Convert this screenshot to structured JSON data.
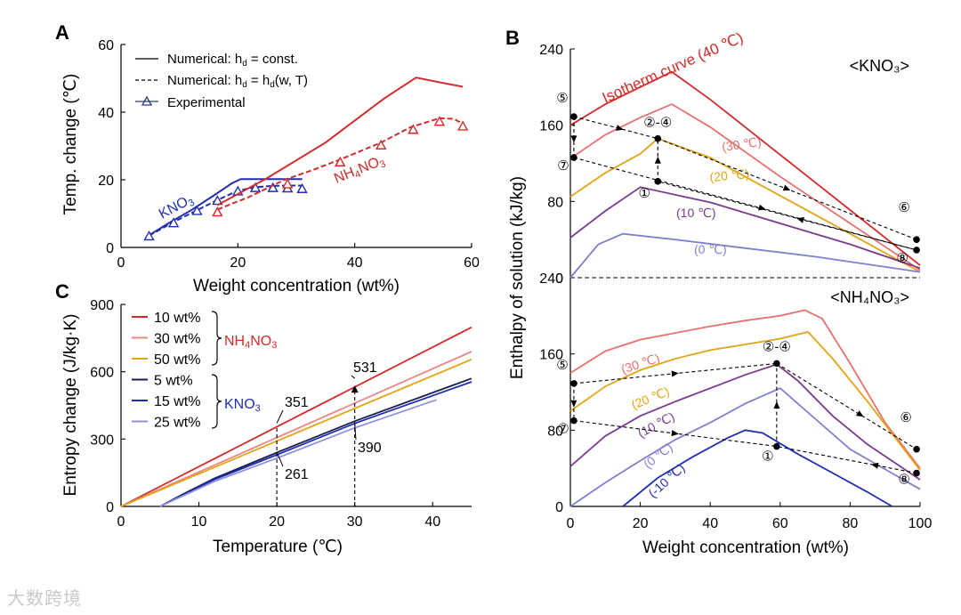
{
  "watermark": "大数跨境",
  "chart_data": [
    {
      "panel": "A",
      "type": "line",
      "xlabel": "Weight concentration (wt%)",
      "ylabel": "Temp. change (℃)",
      "xlim": [
        0,
        60
      ],
      "ylim": [
        0,
        60
      ],
      "xticks": [
        0,
        20,
        40,
        60
      ],
      "yticks": [
        0,
        20,
        40,
        60
      ],
      "legend": [
        "Numerical: h_d = const.",
        "Numerical: h_d = h_d(w, T)",
        "Experimental"
      ],
      "legend_placement": "top-left",
      "colors": {
        "KNO3": "#1f2fb0",
        "NH4NO3": "#d42a2a"
      },
      "series": [
        {
          "name": "KNO3 numerical const",
          "style": "solid",
          "color": "#1f2fb0",
          "x": [
            4.8,
            8,
            12,
            16,
            19,
            20.5,
            22,
            31
          ],
          "y": [
            3.6,
            7,
            11,
            15.5,
            19,
            20.2,
            20.2,
            20.2
          ]
        },
        {
          "name": "KNO3 numerical hd(w,T)",
          "style": "dashed",
          "color": "#1f2fb0",
          "x": [
            4.8,
            9,
            13,
            16.5,
            20,
            23,
            26,
            29,
            31
          ],
          "y": [
            3.5,
            7.5,
            11,
            14,
            16.8,
            17.8,
            18.2,
            18.3,
            18.3
          ]
        },
        {
          "name": "KNO3 experimental",
          "style": "markers",
          "color": "#1f2fb0",
          "x": [
            4.8,
            9,
            13,
            16.5,
            20,
            23,
            26,
            28.5,
            31
          ],
          "y": [
            3.3,
            7.2,
            10.8,
            13.8,
            16.6,
            17.6,
            17.6,
            17.5,
            17.3
          ]
        },
        {
          "name": "NH4NO3 numerical const",
          "style": "solid",
          "color": "#d42a2a",
          "x": [
            16.5,
            25,
            35,
            45,
            50.5,
            54,
            58.5
          ],
          "y": [
            12.5,
            20.5,
            31,
            44,
            50.2,
            49,
            47.5
          ]
        },
        {
          "name": "NH4NO3 numerical hd(w,T)",
          "style": "dashed",
          "color": "#d42a2a",
          "x": [
            16.5,
            22,
            28,
            33,
            37.5,
            44.5,
            49.5,
            54.5,
            57,
            58.5
          ],
          "y": [
            11.2,
            15,
            20,
            23,
            26,
            31,
            35.5,
            38.2,
            38,
            36.5
          ]
        },
        {
          "name": "NH4NO3 experimental",
          "style": "markers",
          "color": "#d42a2a",
          "x": [
            16.5,
            28.5,
            37.5,
            44.5,
            50,
            54.5,
            58.5
          ],
          "y": [
            10.4,
            18.7,
            25.2,
            30.2,
            34.8,
            37.2,
            35.8
          ]
        }
      ],
      "annotations": [
        {
          "text": "KNO",
          "sub": "3",
          "color": "#1f2fb0"
        },
        {
          "text": "NH",
          "sub": "4",
          "text2": "NO",
          "sub2": "3",
          "color": "#d42a2a"
        }
      ]
    },
    {
      "panel": "B",
      "type": "line",
      "xlabel": "Weight concentration (wt%)",
      "ylabel": "Enthalpy of solution (kJ/kg)",
      "xlim": [
        0,
        100
      ],
      "xticks": [
        0,
        20,
        40,
        60,
        80,
        100
      ],
      "subplots": [
        {
          "title": "<KNO₃>",
          "ylim": [
            0,
            240
          ],
          "yticks": [
            0,
            80,
            160,
            240
          ],
          "isotherms": [
            {
              "label": "Isotherm curve (40 ℃)",
              "color": "#d42a2a",
              "x": [
                0,
                10,
                20,
                29,
                40,
                60,
                80,
                100
              ],
              "y": [
                160,
                182,
                200,
                216,
                187,
                129,
                71,
                13
              ]
            },
            {
              "label": "(30 ℃)",
              "color": "#e8716e",
              "x": [
                0,
                10,
                20,
                29,
                40,
                60,
                80,
                100
              ],
              "y": [
                125,
                150,
                168,
                182,
                158,
                106,
                57,
                8
              ]
            },
            {
              "label": "(20 ℃)",
              "color": "#e3a418",
              "x": [
                0,
                10,
                20,
                25,
                40,
                60,
                80,
                100
              ],
              "y": [
                85,
                110,
                130,
                146,
                126,
                86,
                46,
                6
              ]
            },
            {
              "label": "(10 ℃)",
              "color": "#7a3a90",
              "x": [
                0,
                10,
                20,
                40,
                60,
                80,
                100
              ],
              "y": [
                42,
                70,
                95,
                79,
                57,
                35,
                10
              ]
            },
            {
              "label": "(0 ℃)",
              "color": "#7f7fd0",
              "x": [
                0,
                8,
                15,
                30,
                50,
                70,
                100
              ],
              "y": [
                0,
                35,
                46,
                40,
                31,
                22,
                6
              ]
            }
          ],
          "cycle_points": [
            {
              "label": "⑤",
              "x": 1,
              "y": 169
            },
            {
              "label": "②-④",
              "x": 25,
              "y": 146
            },
            {
              "label": "①",
              "x": 25,
              "y": 101
            },
            {
              "label": "⑦",
              "x": 1,
              "y": 126
            },
            {
              "label": "⑥",
              "x": 99,
              "y": 40
            },
            {
              "label": "⑧",
              "x": 99,
              "y": 29
            }
          ]
        },
        {
          "title": "<NH₄NO₃>",
          "ylim": [
            0,
            240
          ],
          "yticks": [
            0,
            80,
            160,
            240
          ],
          "isotherms": [
            {
              "label": "(30 ℃)",
              "color": "#e8716e",
              "x": [
                0,
                10,
                20,
                30,
                40,
                50,
                60,
                67,
                72,
                80,
                90,
                100
              ],
              "y": [
                140,
                163,
                175,
                182,
                189,
                195,
                200,
                206,
                197,
                150,
                88,
                40
              ]
            },
            {
              "label": "(20 ℃)",
              "color": "#e3a418",
              "x": [
                0,
                10,
                20,
                30,
                40,
                50,
                60,
                68,
                75,
                85,
                100
              ],
              "y": [
                100,
                126,
                143,
                155,
                164,
                170,
                176,
                183,
                155,
                110,
                38
              ]
            },
            {
              "label": "(10 ℃)",
              "color": "#7a3a90",
              "x": [
                0,
                10,
                20,
                30,
                40,
                50,
                59,
                65,
                75,
                85,
                100
              ],
              "y": [
                42,
                74,
                95,
                110,
                124,
                138,
                149,
                132,
                95,
                65,
                28
              ]
            },
            {
              "label": "(0 ℃)",
              "color": "#7f7fd0",
              "x": [
                0,
                10,
                20,
                30,
                40,
                50,
                60,
                70,
                80,
                100
              ],
              "y": [
                0,
                25,
                48,
                70,
                88,
                108,
                124,
                92,
                60,
                18
              ]
            },
            {
              "label": "(-10 ℃)",
              "color": "#1f2fb0",
              "x": [
                15,
                25,
                35,
                45,
                50,
                55,
                65,
                75,
                85,
                92
              ],
              "y": [
                0,
                30,
                52,
                72,
                80,
                77,
                55,
                35,
                15,
                0
              ]
            }
          ],
          "cycle_points": [
            {
              "label": "⑤",
              "x": 1,
              "y": 129
            },
            {
              "label": "②-④",
              "x": 59,
              "y": 150
            },
            {
              "label": "①",
              "x": 59,
              "y": 63
            },
            {
              "label": "⑦",
              "x": 1,
              "y": 90
            },
            {
              "label": "⑥",
              "x": 99,
              "y": 60
            },
            {
              "label": "⑧",
              "x": 99,
              "y": 35
            }
          ]
        }
      ]
    },
    {
      "panel": "C",
      "type": "line",
      "xlabel": "Temperature (℃)",
      "ylabel": "Entropy change (J/kg·K)",
      "xlim": [
        0,
        45
      ],
      "ylim": [
        0,
        900
      ],
      "xticks": [
        0,
        10,
        20,
        30,
        40
      ],
      "yticks": [
        0,
        300,
        600,
        900
      ],
      "series": [
        {
          "name": "10 wt%",
          "group": "NH4NO3",
          "color": "#d42a2a",
          "x": [
            0,
            45
          ],
          "y": [
            0,
            798
          ]
        },
        {
          "name": "30 wt%",
          "group": "NH4NO3",
          "color": "#ee8585",
          "x": [
            0,
            45
          ],
          "y": [
            0,
            690
          ]
        },
        {
          "name": "50 wt%",
          "group": "NH4NO3",
          "color": "#e3a418",
          "x": [
            0,
            45
          ],
          "y": [
            0,
            655
          ]
        },
        {
          "name": "5 wt%",
          "group": "KNO3",
          "color": "#1a1f4f",
          "x": [
            5,
            8,
            12,
            20,
            30,
            45
          ],
          "y": [
            0,
            55,
            125,
            240,
            380,
            570
          ]
        },
        {
          "name": "15 wt%",
          "group": "KNO3",
          "color": "#1f2fb0",
          "x": [
            5,
            8,
            12,
            20,
            30,
            45
          ],
          "y": [
            0,
            52,
            120,
            230,
            370,
            555
          ]
        },
        {
          "name": "25 wt%",
          "group": "KNO3",
          "color": "#8f8fe0",
          "x": [
            5,
            8,
            12,
            20,
            30,
            40.5
          ],
          "y": [
            0,
            48,
            112,
            215,
            350,
            475
          ]
        }
      ],
      "legend_groups": [
        {
          "label": "NH",
          "sub": "4",
          "label2": "NO",
          "sub2": "3",
          "color": "#d42a2a"
        },
        {
          "label": "KNO",
          "sub": "3",
          "color": "#1f2fb0"
        }
      ],
      "annotations": [
        {
          "text": "351",
          "x": 20,
          "y": 351
        },
        {
          "text": "261",
          "x": 20,
          "y": 261
        },
        {
          "text": "531",
          "x": 30,
          "y": 531
        },
        {
          "text": "390",
          "x": 30,
          "y": 390
        }
      ]
    }
  ],
  "panel_labels": [
    "A",
    "B",
    "C"
  ]
}
